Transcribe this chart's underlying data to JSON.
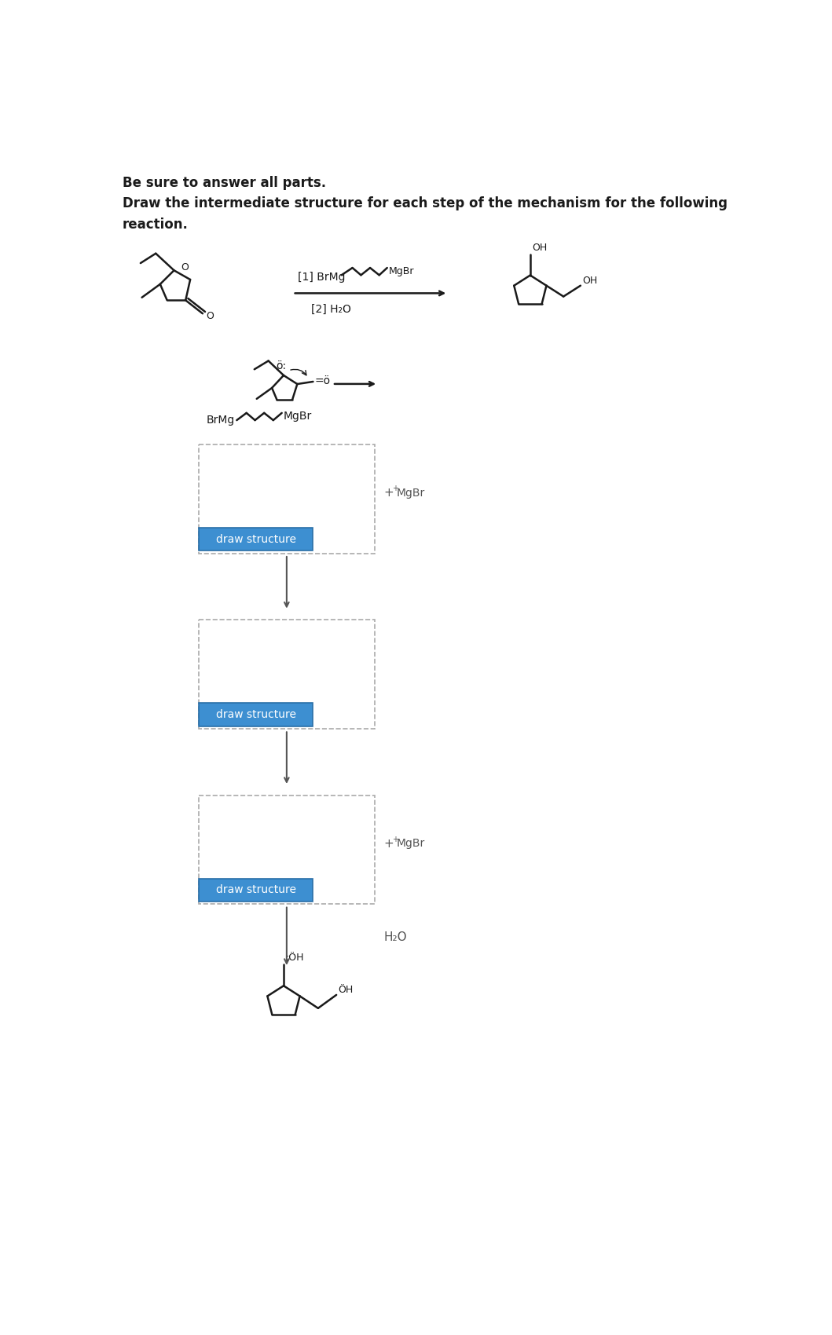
{
  "title_line1": "Be sure to answer all parts.",
  "title_line2": "Draw the intermediate structure for each step of the mechanism for the following",
  "title_line3": "reaction.",
  "bg_color": "#ffffff",
  "text_color": "#1a1a1a",
  "blue_btn_color": "#3d8fd1",
  "btn_text_color": "#ffffff",
  "dashed_box_color": "#aaaaaa",
  "arrow_color": "#444444",
  "draw_structure_text": "draw structure",
  "h2o_text": "H₂O",
  "reagent_line1": "[1] BrMg",
  "reagent_line2": "[2] H₂O",
  "mgbr_label": "MgBr",
  "brmg_label": "BrMg",
  "plus_superscript": "+",
  "mgbr_plus": "MgBr"
}
